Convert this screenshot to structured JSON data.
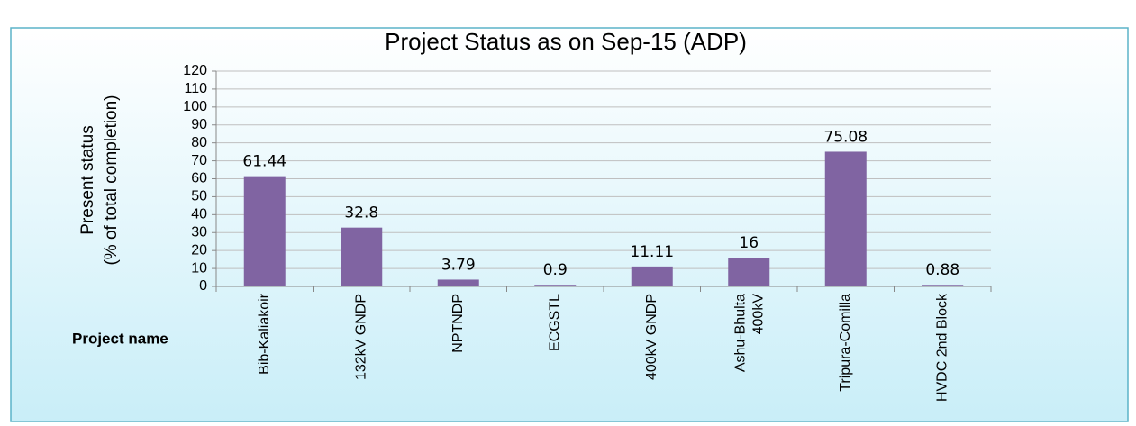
{
  "chart_data": {
    "type": "bar",
    "title": "Project  Status as on  Sep-15 (ADP)",
    "ylabel": [
      "Present status",
      "(% of total completion)"
    ],
    "xlabel": "Project name",
    "categories": [
      "Bib-Kaliakoir",
      "132kV GNDP",
      "NPTNDP",
      "ECGSTL",
      "400kV GNDP",
      [
        "Ashu-Bhulta",
        "400kV"
      ],
      "Tripura-Comilla",
      "HVDC 2nd Block"
    ],
    "values": [
      61.44,
      32.8,
      3.79,
      0.9,
      11.11,
      16,
      75.08,
      0.88
    ],
    "color": "#8064a2",
    "ylim": [
      0,
      120
    ],
    "yticks": [
      0,
      10,
      20,
      30,
      40,
      50,
      60,
      70,
      80,
      90,
      100,
      110,
      120
    ],
    "grid": true
  }
}
